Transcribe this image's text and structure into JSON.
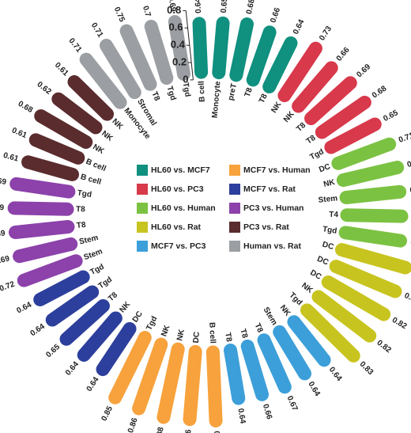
{
  "chart_data": {
    "type": "radial-bar",
    "rlim": [
      0,
      0.8
    ],
    "rticks": [
      0,
      0.2,
      0.4,
      0.6,
      0.8
    ],
    "series": [
      {
        "name": "HL60 vs. MCF7",
        "color": "#10907f",
        "categories": [
          "B cell",
          "Monocyte",
          "preT",
          "T8",
          "T8"
        ],
        "values": [
          0.64,
          0.65,
          0.68,
          0.66,
          0.64
        ]
      },
      {
        "name": "HL60 vs. PC3",
        "color": "#d8394b",
        "categories": [
          "NK",
          "NK",
          "T8",
          "T8",
          "Tgd"
        ],
        "values": [
          0.73,
          0.66,
          0.69,
          0.68,
          0.65
        ]
      },
      {
        "name": "HL60 vs. Human",
        "color": "#7cc242",
        "categories": [
          "DC",
          "NK",
          "Stem",
          "T4",
          "Tgd"
        ],
        "values": [
          0.71,
          0.72,
          0.7,
          0.71,
          0.72
        ]
      },
      {
        "name": "HL60 vs. Rat",
        "color": "#c8c41f",
        "categories": [
          "DC",
          "DC",
          "DC",
          "NK",
          "Tgd"
        ],
        "values": [
          0.84,
          0.82,
          0.82,
          0.82,
          0.83
        ]
      },
      {
        "name": "MCF7 vs. PC3",
        "color": "#3c9fd9",
        "categories": [
          "NK",
          "Stem",
          "T8",
          "T8",
          "T8"
        ],
        "values": [
          0.64,
          0.64,
          0.67,
          0.66,
          0.64
        ]
      },
      {
        "name": "MCF7 vs. Human",
        "color": "#f7a23c",
        "categories": [
          "B cell",
          "DC",
          "NK",
          "NK",
          "Tgd"
        ],
        "values": [
          0.87,
          0.86,
          0.88,
          0.86,
          0.85
        ]
      },
      {
        "name": "MCF7 vs. Rat",
        "color": "#2d3f9c",
        "categories": [
          "DC",
          "NK",
          "T8",
          "Tgd",
          "Tgd"
        ],
        "values": [
          0.64,
          0.64,
          0.65,
          0.64,
          0.64
        ]
      },
      {
        "name": "PC3 vs. Human",
        "color": "#8c42aa",
        "categories": [
          "Stem",
          "Stem",
          "T8",
          "T8",
          "Tgd"
        ],
        "values": [
          0.72,
          0.69,
          0.69,
          0.69,
          0.69
        ]
      },
      {
        "name": "PC3 vs. Rat",
        "color": "#5a2c2e",
        "categories": [
          "B cell",
          "B cell",
          "NK",
          "NK",
          "NK"
        ],
        "values": [
          0.61,
          0.61,
          0.68,
          0.62,
          0.61
        ]
      },
      {
        "name": "Human vs. Rat",
        "color": "#9b9ea2",
        "categories": [
          "Monocyte",
          "Stromal",
          "T8",
          "Tgd",
          "Tgd"
        ],
        "values": [
          0.71,
          0.71,
          0.75,
          0.7,
          0.69
        ]
      }
    ]
  }
}
